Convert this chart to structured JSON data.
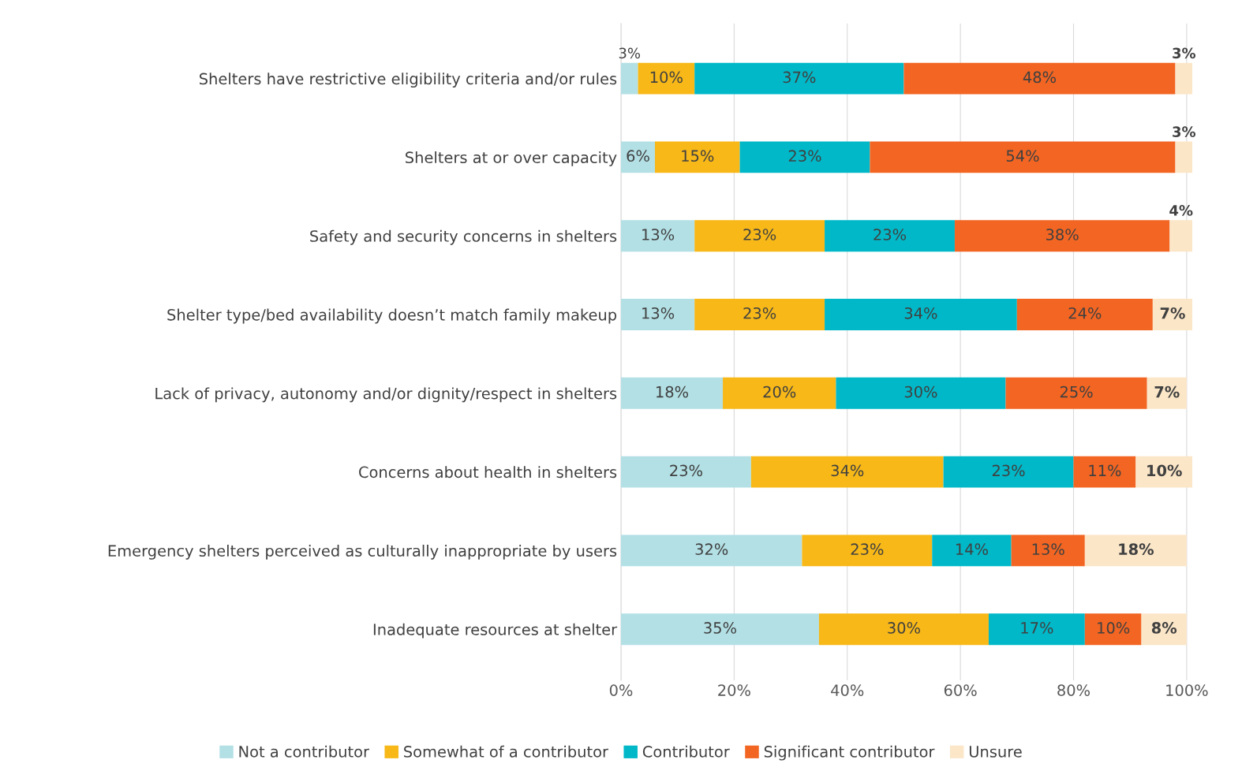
{
  "chart_data": {
    "type": "bar",
    "orientation": "horizontal",
    "stacked": true,
    "grid": "x",
    "legend": "bottom",
    "categories": [
      "Shelters have restrictive eligibility criteria and/or rules",
      "Shelters at or over capacity",
      "Safety and security concerns in shelters",
      "Shelter type/bed availability doesn’t match family makeup",
      "Lack of privacy, autonomy and/or dignity/respect in shelters",
      "Concerns about health in shelters",
      "Emergency shelters perceived as culturally inappropriate by users",
      "Inadequate resources at shelter"
    ],
    "series": [
      {
        "name": "Not a contributor",
        "color": "#b3e0e5",
        "values": [
          3,
          6,
          13,
          13,
          18,
          23,
          32,
          35
        ],
        "value_labels": [
          "3%",
          "6%",
          "13%",
          "13%",
          "18%",
          "23%",
          "32%",
          "35%"
        ]
      },
      {
        "name": "Somewhat of a contributor",
        "color": "#f7b818",
        "values": [
          10,
          15,
          23,
          23,
          20,
          34,
          23,
          30
        ],
        "value_labels": [
          "10%",
          "15%",
          "23%",
          "23%",
          "20%",
          "34%",
          "23%",
          "30%"
        ]
      },
      {
        "name": "Contributor",
        "color": "#00b8c8",
        "values": [
          37,
          23,
          23,
          34,
          30,
          23,
          14,
          17
        ],
        "value_labels": [
          "37%",
          "23%",
          "23%",
          "34%",
          "30%",
          "23%",
          "14%",
          "17%"
        ]
      },
      {
        "name": "Significant contributor",
        "color": "#f26522",
        "values": [
          48,
          54,
          38,
          24,
          25,
          11,
          13,
          10
        ],
        "value_labels": [
          "48%",
          "54%",
          "38%",
          "24%",
          "25%",
          "11%",
          "13%",
          "10%"
        ]
      },
      {
        "name": "Unsure",
        "color": "#fbe6c8",
        "values": [
          3,
          3,
          4,
          7,
          7,
          10,
          18,
          8
        ],
        "value_labels": [
          "3%",
          "3%",
          "4%",
          "7%",
          "7%",
          "10%",
          "18%",
          "8%"
        ]
      }
    ],
    "xlim": [
      0,
      101
    ],
    "xticks": [
      {
        "value": 0,
        "label": "0%"
      },
      {
        "value": 20,
        "label": "20%"
      },
      {
        "value": 40,
        "label": "40%"
      },
      {
        "value": 60,
        "label": "60%"
      },
      {
        "value": 80,
        "label": "80%"
      },
      {
        "value": 100,
        "label": "100%"
      }
    ]
  }
}
